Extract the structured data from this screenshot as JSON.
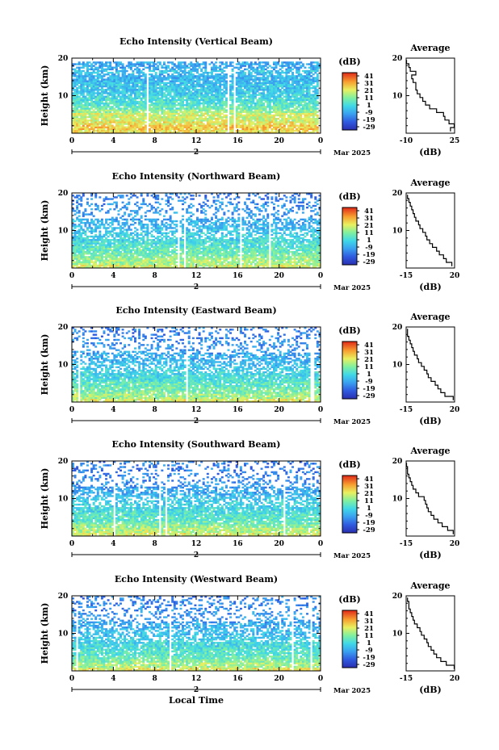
{
  "chart_data": [
    {
      "type": "heatmap",
      "title": "Echo Intensity (Vertical Beam)",
      "ylabel": "Height (km)",
      "yticks": [
        "20",
        "10"
      ],
      "xticks": [
        "0",
        "4",
        "8",
        "12",
        "16",
        "20",
        "0"
      ],
      "date_day": "2",
      "date_label": "Mar 2025",
      "colorbar_title": "(dB)",
      "colorbar_ticks": [
        "41",
        "31",
        "21",
        "11",
        "1",
        "-9",
        "-19",
        "-29"
      ],
      "vrange": [
        -29,
        41
      ],
      "ylim": [
        0,
        20
      ],
      "xlim": [
        0,
        24
      ],
      "average_title": "Average",
      "average_xticks": [
        "-10",
        "25"
      ],
      "average_xlim": [
        -10,
        25
      ],
      "average_yticks": [
        "20",
        "10"
      ],
      "average_xlabel": "(dB)",
      "average_profile": {
        "height": [
          1,
          2,
          3,
          4,
          5,
          6,
          7,
          8,
          9,
          10,
          11,
          12,
          13,
          14,
          15,
          16,
          17,
          18,
          19
        ],
        "db": [
          22,
          25,
          21,
          18,
          17,
          12,
          7,
          4,
          2,
          0,
          -2,
          -3,
          -3,
          -5,
          -6,
          -3,
          -7,
          -8,
          -10
        ]
      }
    },
    {
      "type": "heatmap",
      "title": "Echo Intensity (Northward Beam)",
      "ylabel": "Height (km)",
      "yticks": [
        "20",
        "10"
      ],
      "xticks": [
        "0",
        "4",
        "8",
        "12",
        "16",
        "20",
        "0"
      ],
      "date_day": "2",
      "date_label": "Mar 2025",
      "colorbar_title": "(dB)",
      "colorbar_ticks": [
        "41",
        "31",
        "21",
        "11",
        "1",
        "-9",
        "-19",
        "-29"
      ],
      "vrange": [
        -29,
        41
      ],
      "ylim": [
        0,
        20
      ],
      "xlim": [
        0,
        24
      ],
      "average_title": "Average",
      "average_xticks": [
        "-15",
        "20"
      ],
      "average_xlim": [
        -15,
        20
      ],
      "average_yticks": [
        "20",
        "10"
      ],
      "average_xlabel": "(dB)",
      "average_profile": {
        "height": [
          1,
          2,
          3,
          4,
          5,
          6,
          7,
          8,
          9,
          10,
          11,
          12,
          13,
          14,
          15,
          16,
          17,
          18,
          19
        ],
        "db": [
          18,
          14,
          12,
          9,
          7,
          4,
          2,
          0,
          -1,
          -3,
          -5,
          -6,
          -8,
          -9,
          -10,
          -11,
          -12,
          -13,
          -14
        ]
      }
    },
    {
      "type": "heatmap",
      "title": "Echo Intensity (Eastward Beam)",
      "ylabel": "Height (km)",
      "yticks": [
        "20",
        "10"
      ],
      "xticks": [
        "0",
        "4",
        "8",
        "12",
        "16",
        "20",
        "0"
      ],
      "date_day": "2",
      "date_label": "Mar 2025",
      "colorbar_title": "(dB)",
      "colorbar_ticks": [
        "41",
        "31",
        "21",
        "11",
        "1",
        "-9",
        "-19",
        "-29"
      ],
      "vrange": [
        -29,
        41
      ],
      "ylim": [
        0,
        20
      ],
      "xlim": [
        0,
        24
      ],
      "average_title": "Average",
      "average_xticks": [
        "-15",
        "20"
      ],
      "average_xlim": [
        -15,
        20
      ],
      "average_yticks": [
        "20",
        "10"
      ],
      "average_xlabel": "(dB)",
      "average_profile": {
        "height": [
          1,
          2,
          3,
          4,
          5,
          6,
          7,
          8,
          9,
          10,
          11,
          12,
          13,
          14,
          15,
          16,
          17,
          18,
          19
        ],
        "db": [
          19,
          13,
          10,
          8,
          6,
          3,
          1,
          0,
          -2,
          -4,
          -6,
          -7,
          -9,
          -10,
          -11,
          -12,
          -13,
          -14,
          -14
        ]
      }
    },
    {
      "type": "heatmap",
      "title": "Echo Intensity (Southward Beam)",
      "ylabel": "Height (km)",
      "yticks": [
        "20",
        "10"
      ],
      "xticks": [
        "0",
        "4",
        "8",
        "12",
        "16",
        "20",
        "0"
      ],
      "date_day": "2",
      "date_label": "Mar 2025",
      "colorbar_title": "(dB)",
      "colorbar_ticks": [
        "41",
        "31",
        "21",
        "11",
        "1",
        "-9",
        "-19",
        "-29"
      ],
      "vrange": [
        -29,
        41
      ],
      "ylim": [
        0,
        20
      ],
      "xlim": [
        0,
        24
      ],
      "average_title": "Average",
      "average_xticks": [
        "-15",
        "20"
      ],
      "average_xlim": [
        -15,
        20
      ],
      "average_yticks": [
        "20",
        "10"
      ],
      "average_xlabel": "(dB)",
      "average_profile": {
        "height": [
          1,
          2,
          3,
          4,
          5,
          6,
          7,
          8,
          9,
          10,
          11,
          12,
          13,
          14,
          15,
          16,
          17,
          18,
          19
        ],
        "db": [
          19,
          15,
          11,
          8,
          5,
          3,
          1,
          0,
          -1,
          -2,
          -6,
          -8,
          -10,
          -11,
          -12,
          -13,
          -14,
          -14,
          -15
        ]
      }
    },
    {
      "type": "heatmap",
      "title": "Echo Intensity (Westward Beam)",
      "ylabel": "Height (km)",
      "yticks": [
        "20",
        "10"
      ],
      "xticks": [
        "0",
        "4",
        "8",
        "12",
        "16",
        "20",
        "0"
      ],
      "date_day": "2",
      "date_label": "Mar 2025",
      "xlabel": "Local Time",
      "colorbar_title": "(dB)",
      "colorbar_ticks": [
        "41",
        "31",
        "21",
        "11",
        "1",
        "-9",
        "-19",
        "-29"
      ],
      "vrange": [
        -29,
        41
      ],
      "ylim": [
        0,
        20
      ],
      "xlim": [
        0,
        24
      ],
      "average_title": "Average",
      "average_xticks": [
        "-15",
        "20"
      ],
      "average_xlim": [
        -15,
        20
      ],
      "average_yticks": [
        "20",
        "10"
      ],
      "average_xlabel": "(dB)",
      "average_profile": {
        "height": [
          1,
          2,
          3,
          4,
          5,
          6,
          7,
          8,
          9,
          10,
          11,
          12,
          13,
          14,
          15,
          16,
          17,
          18,
          19
        ],
        "db": [
          20,
          14,
          10,
          7,
          5,
          3,
          1,
          0,
          -2,
          -4,
          -5,
          -7,
          -9,
          -10,
          -11,
          -12,
          -13,
          -13,
          -14
        ]
      }
    }
  ]
}
